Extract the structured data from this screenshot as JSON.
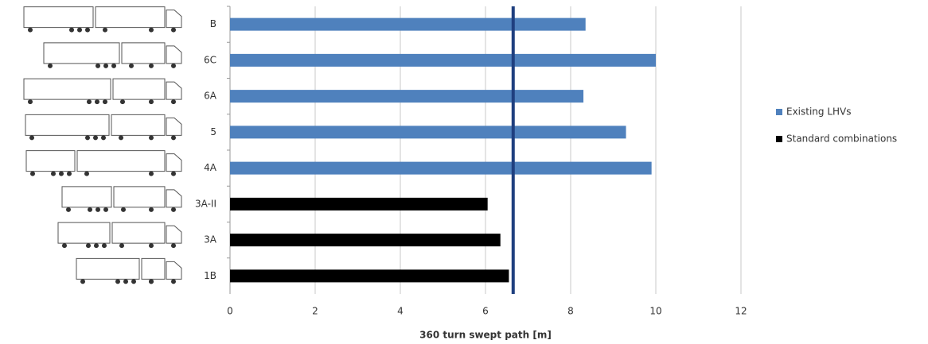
{
  "chart_data": {
    "type": "bar",
    "orientation": "horizontal",
    "x_label": "360 turn swept path [m]",
    "categories": [
      "B",
      "6C",
      "6A",
      "5",
      "4A",
      "3A-II",
      "3A",
      "1B"
    ],
    "series": [
      {
        "name": "Existing LHVs",
        "color": "#4f81bd",
        "values": [
          8.35,
          10.0,
          8.3,
          9.3,
          9.9,
          null,
          null,
          null
        ]
      },
      {
        "name": "Standard combinations",
        "color": "#000000",
        "values": [
          null,
          null,
          null,
          null,
          null,
          6.05,
          6.35,
          6.55
        ]
      }
    ],
    "reference_line": {
      "value": 6.65,
      "color": "#1f3f7f"
    },
    "xlim": [
      0,
      12
    ],
    "xticks": [
      0,
      2,
      4,
      6,
      8,
      10,
      12
    ],
    "grid": true,
    "legend": "right"
  }
}
